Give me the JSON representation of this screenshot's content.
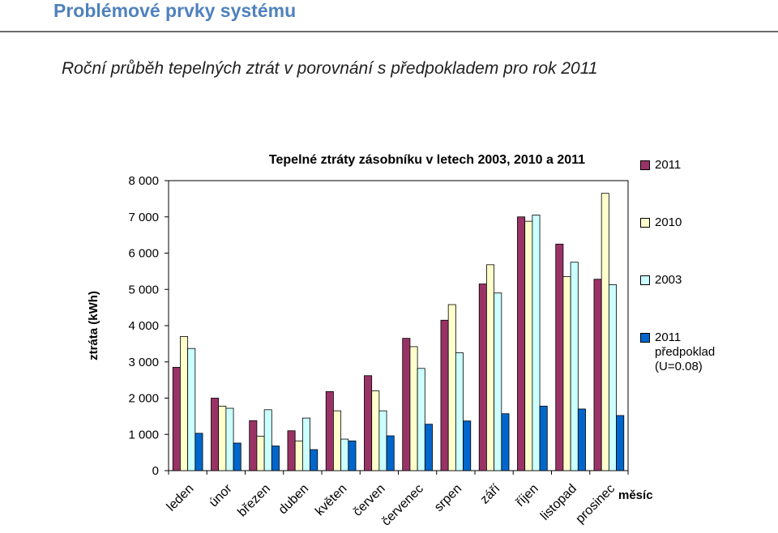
{
  "page": {
    "title": "Problémové prvky systému",
    "subtitle": "Roční průběh tepelných ztrát v porovnání s předpokladem pro rok 2011"
  },
  "colors": {
    "title": "#4f81bd",
    "s2011": "#993366",
    "s2010": "#ffffcc",
    "s2003": "#ccffff",
    "sPred": "#0066cc"
  },
  "chart_data": {
    "type": "bar",
    "title": "Tepelné ztráty zásobníku v letech 2003, 2010 a 2011",
    "xlabel": "měsíc",
    "ylabel": "ztráta (kWh)",
    "ylim": [
      0,
      8000
    ],
    "yticks": [
      "0",
      "1 000",
      "2 000",
      "3 000",
      "4 000",
      "5 000",
      "6 000",
      "7 000",
      "8 000"
    ],
    "grid": false,
    "legend_position": "right",
    "categories": [
      "leden",
      "únor",
      "březen",
      "duben",
      "květen",
      "červen",
      "červenec",
      "srpen",
      "září",
      "říjen",
      "listopad",
      "prosinec"
    ],
    "series": [
      {
        "name": "2011",
        "color": "#993366",
        "values": [
          2850,
          2000,
          1380,
          1100,
          2180,
          2620,
          3650,
          4150,
          5150,
          7000,
          6250,
          5280
        ]
      },
      {
        "name": "2010",
        "color": "#ffffcc",
        "values": [
          3700,
          1780,
          950,
          820,
          1650,
          2200,
          3420,
          4580,
          5680,
          6880,
          5350,
          7650
        ]
      },
      {
        "name": "2003",
        "color": "#ccffff",
        "values": [
          3370,
          1720,
          1680,
          1450,
          870,
          1650,
          2820,
          3250,
          4900,
          7050,
          5750,
          5130
        ]
      },
      {
        "name": "2011 předpoklad (U=0.08)",
        "color": "#0066cc",
        "values": [
          1030,
          760,
          680,
          580,
          820,
          960,
          1280,
          1370,
          1570,
          1780,
          1700,
          1520
        ]
      }
    ]
  },
  "legend": {
    "items": [
      {
        "label": "2011",
        "color": "#993366"
      },
      {
        "label": "2010",
        "color": "#ffffcc"
      },
      {
        "label": "2003",
        "color": "#ccffff"
      },
      {
        "label": "2011 předpoklad (U=0.08)",
        "color": "#0066cc"
      }
    ]
  }
}
